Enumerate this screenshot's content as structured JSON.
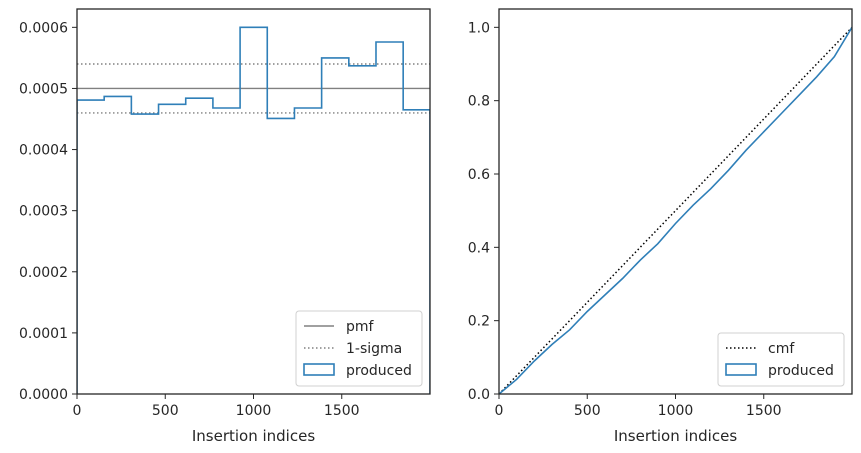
{
  "chart_data": [
    {
      "type": "line",
      "xlabel": "Insertion indices",
      "ylabel": "",
      "xlim": [
        0,
        2000
      ],
      "ylim": [
        0,
        0.00063
      ],
      "x_ticks": [
        0,
        500,
        1000,
        1500
      ],
      "x_tick_labels": [
        "0",
        "500",
        "1000",
        "1500"
      ],
      "y_ticks": [
        0,
        0.0001,
        0.0002,
        0.0003,
        0.0004,
        0.0005,
        0.0006
      ],
      "y_tick_labels": [
        "0.0000",
        "0.0001",
        "0.0002",
        "0.0003",
        "0.0004",
        "0.0005",
        "0.0006"
      ],
      "grid": false,
      "legend_position": "lower right",
      "reference_lines": [
        {
          "name": "pmf",
          "value": 0.0005,
          "style": "solid",
          "color": "#808080"
        },
        {
          "name": "1-sigma",
          "value": 0.00054,
          "style": "dotted",
          "color": "#808080"
        },
        {
          "name": "1-sigma",
          "value": 0.00046,
          "style": "dotted",
          "color": "#808080"
        }
      ],
      "series": [
        {
          "name": "produced",
          "type": "step-histogram",
          "color": "#2f7fb8",
          "bin_edges": [
            0,
            154,
            308,
            462,
            616,
            770,
            924,
            1078,
            1232,
            1386,
            1540,
            1694,
            1848,
            2000
          ],
          "values": [
            0.000481,
            0.000487,
            0.000458,
            0.000474,
            0.000484,
            0.000468,
            0.0006,
            0.000451,
            0.000468,
            0.00055,
            0.000537,
            0.000576,
            0.000465
          ]
        }
      ],
      "legend": [
        {
          "label": "pmf",
          "style": "solid-line"
        },
        {
          "label": "1-sigma",
          "style": "dotted-line"
        },
        {
          "label": "produced",
          "style": "box"
        }
      ]
    },
    {
      "type": "line",
      "xlabel": "Insertion indices",
      "ylabel": "",
      "xlim": [
        0,
        2000
      ],
      "ylim": [
        0,
        1.05
      ],
      "x_ticks": [
        0,
        500,
        1000,
        1500
      ],
      "x_tick_labels": [
        "0",
        "500",
        "1000",
        "1500"
      ],
      "y_ticks": [
        0,
        0.2,
        0.4,
        0.6,
        0.8,
        1.0
      ],
      "y_tick_labels": [
        "0.0",
        "0.2",
        "0.4",
        "0.6",
        "0.8",
        "1.0"
      ],
      "grid": false,
      "legend_position": "lower right",
      "series": [
        {
          "name": "cmf",
          "style": "dotted",
          "color": "#000000",
          "x": [
            0,
            2000
          ],
          "y": [
            0,
            1.0
          ]
        },
        {
          "name": "produced",
          "style": "solid",
          "color": "#2f7fb8",
          "x": [
            0,
            100,
            200,
            300,
            400,
            500,
            600,
            700,
            800,
            900,
            1000,
            1100,
            1200,
            1300,
            1400,
            1500,
            1600,
            1700,
            1800,
            1900,
            2000
          ],
          "y": [
            0,
            0.04,
            0.09,
            0.135,
            0.175,
            0.225,
            0.27,
            0.315,
            0.365,
            0.41,
            0.465,
            0.515,
            0.56,
            0.61,
            0.665,
            0.715,
            0.765,
            0.815,
            0.865,
            0.92,
            1.0
          ]
        }
      ],
      "legend": [
        {
          "label": "cmf",
          "style": "dotted-line"
        },
        {
          "label": "produced",
          "style": "box"
        }
      ]
    }
  ]
}
